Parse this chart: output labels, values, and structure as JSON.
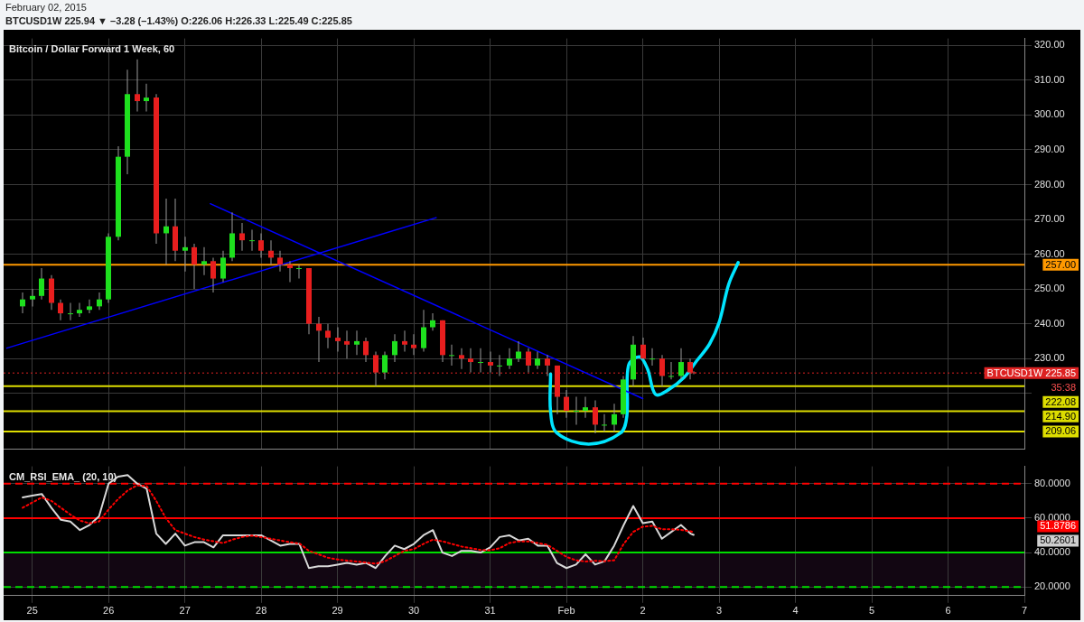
{
  "chart_data": [
    {
      "type": "candlestick",
      "title": "Bitcoin / Dollar Forward 1 Week, 60",
      "tick_labels": "y",
      "grid": true,
      "legend": false,
      "marker": "none",
      "subtitle": "BTCUSD1W 225.94 ▼ –3.28 (–1.43%) O:226.06 H:226.33 L:225.49 C:225.85",
      "annotations": [
        "February 02, 2015",
        "35:38"
      ],
      "x": [
        "2015-01-24T21:00",
        "2015-01-25T00:00",
        "2015-01-25T03:00",
        "2015-01-25T06:00",
        "2015-01-25T09:00",
        "2015-01-25T12:00",
        "2015-01-25T15:00",
        "2015-01-25T18:00",
        "2015-01-25T21:00",
        "2015-01-26T00:00",
        "2015-01-26T03:00",
        "2015-01-26T06:00",
        "2015-01-26T09:00",
        "2015-01-26T12:00",
        "2015-01-26T15:00",
        "2015-01-26T18:00",
        "2015-01-26T21:00",
        "2015-01-27T00:00",
        "2015-01-27T03:00",
        "2015-01-27T06:00",
        "2015-01-27T09:00",
        "2015-01-27T12:00",
        "2015-01-27T15:00",
        "2015-01-27T18:00",
        "2015-01-27T21:00",
        "2015-01-28T00:00",
        "2015-01-28T03:00",
        "2015-01-28T06:00",
        "2015-01-28T09:00",
        "2015-01-28T12:00",
        "2015-01-28T15:00",
        "2015-01-28T18:00",
        "2015-01-28T21:00",
        "2015-01-29T00:00",
        "2015-01-29T03:00",
        "2015-01-29T06:00",
        "2015-01-29T09:00",
        "2015-01-29T12:00",
        "2015-01-29T15:00",
        "2015-01-29T18:00",
        "2015-01-29T21:00",
        "2015-01-30T00:00",
        "2015-01-30T03:00",
        "2015-01-30T06:00",
        "2015-01-30T09:00",
        "2015-01-30T12:00",
        "2015-01-30T15:00",
        "2015-01-30T18:00",
        "2015-01-30T21:00",
        "2015-01-31T00:00",
        "2015-01-31T03:00",
        "2015-01-31T06:00",
        "2015-01-31T09:00",
        "2015-01-31T12:00",
        "2015-01-31T15:00",
        "2015-01-31T18:00",
        "2015-01-31T21:00",
        "2015-02-01T00:00",
        "2015-02-01T03:00",
        "2015-02-01T06:00",
        "2015-02-01T09:00",
        "2015-02-01T12:00",
        "2015-02-01T15:00",
        "2015-02-01T18:00",
        "2015-02-01T21:00",
        "2015-02-02T00:00",
        "2015-02-02T03:00",
        "2015-02-02T06:00",
        "2015-02-02T09:00",
        "2015-02-02T12:00",
        "2015-02-02T15:00",
        "2015-02-02T16:00"
      ],
      "ohlc": [
        [
          245,
          249,
          243,
          247
        ],
        [
          247,
          250,
          245,
          248
        ],
        [
          248,
          256,
          247,
          253
        ],
        [
          253,
          254,
          244,
          246
        ],
        [
          246,
          247,
          241,
          243
        ],
        [
          243,
          246,
          241,
          243
        ],
        [
          243,
          246,
          242,
          244
        ],
        [
          244,
          247,
          243,
          245
        ],
        [
          245,
          249,
          244,
          247
        ],
        [
          247,
          266,
          246,
          265
        ],
        [
          265,
          291,
          264,
          288
        ],
        [
          288,
          313,
          283,
          306
        ],
        [
          306,
          316,
          301,
          304
        ],
        [
          304,
          309,
          301,
          305
        ],
        [
          305,
          306,
          263,
          266
        ],
        [
          266,
          276,
          257,
          268
        ],
        [
          268,
          276,
          258,
          261
        ],
        [
          261,
          265,
          255,
          262
        ],
        [
          262,
          263,
          250,
          257
        ],
        [
          257,
          262,
          254,
          258
        ],
        [
          258,
          259,
          249,
          253
        ],
        [
          253,
          261,
          252,
          259
        ],
        [
          259,
          272,
          258,
          266
        ],
        [
          266,
          269,
          261,
          264
        ],
        [
          264,
          267,
          261,
          264
        ],
        [
          264,
          266,
          259,
          261
        ],
        [
          261,
          264,
          257,
          259
        ],
        [
          259,
          261,
          255,
          257
        ],
        [
          257,
          258,
          252,
          256
        ],
        [
          256,
          257,
          253,
          256
        ],
        [
          256,
          256,
          237,
          240
        ],
        [
          240,
          242,
          229,
          238
        ],
        [
          238,
          240,
          233,
          236
        ],
        [
          236,
          239,
          232,
          235
        ],
        [
          235,
          238,
          230,
          234
        ],
        [
          234,
          238,
          231,
          235
        ],
        [
          235,
          236,
          229,
          231
        ],
        [
          231,
          232,
          222,
          226
        ],
        [
          226,
          232,
          224,
          231
        ],
        [
          231,
          237,
          229,
          235
        ],
        [
          235,
          238,
          232,
          234
        ],
        [
          234,
          237,
          231,
          233
        ],
        [
          233,
          244,
          232,
          239
        ],
        [
          239,
          243,
          238,
          241
        ],
        [
          241,
          241,
          229,
          231
        ],
        [
          231,
          234,
          228,
          231
        ],
        [
          231,
          233,
          227,
          230
        ],
        [
          230,
          233,
          226,
          229
        ],
        [
          229,
          233,
          226,
          229
        ],
        [
          229,
          232,
          226,
          228
        ],
        [
          228,
          231,
          225,
          228
        ],
        [
          228,
          233,
          227,
          230
        ],
        [
          230,
          235,
          229,
          232
        ],
        [
          232,
          233,
          226,
          228
        ],
        [
          228,
          232,
          227,
          230
        ],
        [
          230,
          231,
          225,
          228
        ],
        [
          228,
          228,
          214,
          219
        ],
        [
          219,
          221,
          213,
          215
        ],
        [
          215,
          219,
          211,
          215
        ],
        [
          215,
          219,
          213,
          216
        ],
        [
          216,
          218,
          208.5,
          211
        ],
        [
          211,
          214,
          209,
          211
        ],
        [
          211,
          217,
          209,
          214
        ],
        [
          214,
          225,
          213,
          224
        ],
        [
          224,
          236.5,
          222,
          234
        ],
        [
          234,
          236,
          229.5,
          230
        ],
        [
          230,
          233,
          228,
          230
        ],
        [
          230,
          231,
          222,
          225
        ],
        [
          225,
          229,
          224,
          225
        ],
        [
          225,
          233,
          224,
          229
        ],
        [
          229,
          230,
          224,
          226
        ],
        [
          226.06,
          226.33,
          225.49,
          225.85
        ]
      ],
      "series": [
        {
          "type": "line",
          "color": "#0000ff",
          "x": [
            "2015-01-24T16:00",
            "2015-01-30T07:00"
          ],
          "values": [
            233,
            270.5
          ]
        },
        {
          "type": "line",
          "color": "#0000ff",
          "x": [
            "2015-01-27T08:00",
            "2015-02-02T00:00"
          ],
          "values": [
            274.5,
            218.5
          ]
        },
        {
          "type": "line",
          "color": "#00e5ff",
          "x": [
            "2015-01-31T19:00",
            "2015-01-31T19:00",
            "2015-01-31T21:00",
            "2015-02-01T07:00",
            "2015-02-01T17:00",
            "2015-02-01T19:00",
            "2015-02-01T19:30",
            "2015-02-01T23:00",
            "2015-02-02T01:30",
            "2015-02-02T04:00",
            "2015-02-02T08:00",
            "2015-02-02T13:00",
            "2015-02-02T17:00",
            "2015-02-02T21:00",
            "2015-02-03T00:00",
            "2015-02-03T03:00",
            "2015-02-03T06:00"
          ],
          "values": [
            225.6,
            214.7,
            208.6,
            205.4,
            208.6,
            213.5,
            228,
            230.5,
            227,
            219.7,
            221,
            224.6,
            229.4,
            234.2,
            240.4,
            251.3,
            257.6
          ]
        }
      ],
      "ref_lines": [
        {
          "axis": "y",
          "value": 257,
          "label": "257.00",
          "color": "#ff9900",
          "line_style": "solid"
        },
        {
          "axis": "y",
          "value": 225.85,
          "label": "BTCUSD1W 225.85",
          "color": "#dd2222",
          "line_style": "dotted"
        },
        {
          "axis": "y",
          "value": 222.08,
          "label": "222.08",
          "color": "#dddd00",
          "line_style": "solid"
        },
        {
          "axis": "y",
          "value": 214.9,
          "label": "214.90",
          "color": "#dddd00",
          "line_style": "solid"
        },
        {
          "axis": "y",
          "value": 209.06,
          "label": "209.06",
          "color": "#dddd00",
          "line_style": "solid"
        }
      ],
      "xlim": [
        "2015-01-24T15:00",
        "2015-02-07T00:00"
      ],
      "xticks": [
        "2015-01-25",
        "2015-01-26",
        "2015-01-27",
        "2015-01-28",
        "2015-01-29",
        "2015-01-30",
        "2015-01-31",
        "2015-02-01",
        "2015-02-02",
        "2015-02-03",
        "2015-02-04",
        "2015-02-05",
        "2015-02-06",
        "2015-02-07"
      ],
      "ylim": [
        204,
        322
      ],
      "yticks": [
        {
          "value": 220,
          "label": null
        },
        {
          "value": 230,
          "label": "230.00"
        },
        {
          "value": 240,
          "label": "240.00"
        },
        {
          "value": 250,
          "label": "250.00"
        },
        {
          "value": 260,
          "label": "260.00"
        },
        {
          "value": 270,
          "label": "270.00"
        },
        {
          "value": 280,
          "label": "280.00"
        },
        {
          "value": 290,
          "label": "290.00"
        },
        {
          "value": 300,
          "label": "300.00"
        },
        {
          "value": 310,
          "label": "310.00"
        },
        {
          "value": 320,
          "label": "320.00"
        }
      ]
    },
    {
      "type": "line",
      "title": "CM_RSI_EMA_ (20, 10)",
      "grid": true,
      "legend": false,
      "marker": "none",
      "annotations": [
        "51.8786",
        "50.2601"
      ],
      "x": [
        "2015-01-24T21:00",
        "2015-01-25T00:00",
        "2015-01-25T03:00",
        "2015-01-25T06:00",
        "2015-01-25T09:00",
        "2015-01-25T12:00",
        "2015-01-25T15:00",
        "2015-01-25T18:00",
        "2015-01-25T21:00",
        "2015-01-26T00:00",
        "2015-01-26T03:00",
        "2015-01-26T06:00",
        "2015-01-26T09:00",
        "2015-01-26T12:00",
        "2015-01-26T15:00",
        "2015-01-26T18:00",
        "2015-01-26T21:00",
        "2015-01-27T00:00",
        "2015-01-27T03:00",
        "2015-01-27T06:00",
        "2015-01-27T09:00",
        "2015-01-27T12:00",
        "2015-01-27T15:00",
        "2015-01-27T18:00",
        "2015-01-27T21:00",
        "2015-01-28T00:00",
        "2015-01-28T03:00",
        "2015-01-28T06:00",
        "2015-01-28T09:00",
        "2015-01-28T12:00",
        "2015-01-28T15:00",
        "2015-01-28T18:00",
        "2015-01-28T21:00",
        "2015-01-29T00:00",
        "2015-01-29T03:00",
        "2015-01-29T06:00",
        "2015-01-29T09:00",
        "2015-01-29T12:00",
        "2015-01-29T15:00",
        "2015-01-29T18:00",
        "2015-01-29T21:00",
        "2015-01-30T00:00",
        "2015-01-30T03:00",
        "2015-01-30T06:00",
        "2015-01-30T09:00",
        "2015-01-30T12:00",
        "2015-01-30T15:00",
        "2015-01-30T18:00",
        "2015-01-30T21:00",
        "2015-01-31T00:00",
        "2015-01-31T03:00",
        "2015-01-31T06:00",
        "2015-01-31T09:00",
        "2015-01-31T12:00",
        "2015-01-31T15:00",
        "2015-01-31T18:00",
        "2015-01-31T21:00",
        "2015-02-01T00:00",
        "2015-02-01T03:00",
        "2015-02-01T06:00",
        "2015-02-01T09:00",
        "2015-02-01T12:00",
        "2015-02-01T15:00",
        "2015-02-01T18:00",
        "2015-02-01T21:00",
        "2015-02-02T00:00",
        "2015-02-02T03:00",
        "2015-02-02T06:00",
        "2015-02-02T09:00",
        "2015-02-02T12:00",
        "2015-02-02T15:00",
        "2015-02-02T16:00"
      ],
      "series": [
        {
          "color": "#ff0000",
          "line_style": "dotted",
          "values": [
            66,
            69,
            72,
            70,
            66,
            62,
            58.5,
            57,
            58,
            65,
            71,
            76,
            79,
            78.5,
            70,
            60,
            53,
            51,
            49,
            47.5,
            46.5,
            45.5,
            47.5,
            49,
            49.8,
            49,
            48,
            47,
            46,
            45.3,
            41,
            39,
            37,
            36,
            35.3,
            34.8,
            34.2,
            33.5,
            35,
            38,
            41,
            42,
            45,
            47.5,
            46.5,
            45,
            43.5,
            42.5,
            41.5,
            41.3,
            42.5,
            45.5,
            46.5,
            46.5,
            45.5,
            44.5,
            41,
            37.5,
            35.5,
            34.8,
            35.2,
            35,
            35.5,
            45,
            52,
            55,
            55.5,
            53.5,
            53.5,
            53.2,
            52.3,
            51.8786
          ]
        },
        {
          "color": "#d8d8d8",
          "line_style": "solid",
          "values": [
            72,
            73,
            74,
            66,
            59,
            58,
            53,
            56,
            61,
            80,
            84,
            85,
            80,
            77,
            51,
            45,
            51,
            44,
            46,
            46,
            43,
            50,
            50,
            50,
            50,
            50,
            47,
            44,
            45,
            45,
            31,
            32,
            32,
            33,
            34,
            33,
            34,
            31,
            38,
            44,
            42,
            45,
            50,
            53,
            40,
            38,
            41,
            41,
            40,
            43,
            49,
            50,
            47,
            48,
            44,
            44,
            34,
            31,
            33,
            39,
            33,
            35,
            44,
            56,
            67,
            57,
            58,
            48,
            52,
            56,
            51,
            50.2601
          ]
        }
      ],
      "ref_lines": [
        {
          "axis": "y",
          "value": 80,
          "color": "#ff0000",
          "line_style": "dashed"
        },
        {
          "axis": "y",
          "value": 60,
          "color": "#ff0000",
          "line_style": "solid"
        },
        {
          "axis": "y",
          "value": 40,
          "color": "#00dd00",
          "line_style": "solid"
        },
        {
          "axis": "y",
          "value": 20,
          "color": "#00dd00",
          "line_style": "dashed"
        }
      ],
      "bands": [
        {
          "axis": "y",
          "from": 20,
          "to": 40,
          "color": "#120612"
        }
      ],
      "xlim": [
        "2015-01-24T15:00",
        "2015-02-07T00:00"
      ],
      "xticks": [
        {
          "value": "2015-01-25",
          "label": "25"
        },
        {
          "value": "2015-01-26",
          "label": "26"
        },
        {
          "value": "2015-01-27",
          "label": "27"
        },
        {
          "value": "2015-01-28",
          "label": "28"
        },
        {
          "value": "2015-01-29",
          "label": "29"
        },
        {
          "value": "2015-01-30",
          "label": "30"
        },
        {
          "value": "2015-01-31",
          "label": "31"
        },
        {
          "value": "2015-02-01",
          "label": "Feb"
        },
        {
          "value": "2015-02-02",
          "label": "2"
        },
        {
          "value": "2015-02-03",
          "label": "3"
        },
        {
          "value": "2015-02-04",
          "label": "4"
        },
        {
          "value": "2015-02-05",
          "label": "5"
        },
        {
          "value": "2015-02-06",
          "label": "6"
        },
        {
          "value": "2015-02-07",
          "label": "7"
        }
      ],
      "ylim": [
        15,
        90
      ],
      "yticks": [
        {
          "value": 20,
          "label": "20.0000"
        },
        {
          "value": 40,
          "label": "40.0000"
        },
        {
          "value": 60,
          "label": "60.0000"
        },
        {
          "value": 80,
          "label": "80.0000"
        }
      ]
    }
  ]
}
